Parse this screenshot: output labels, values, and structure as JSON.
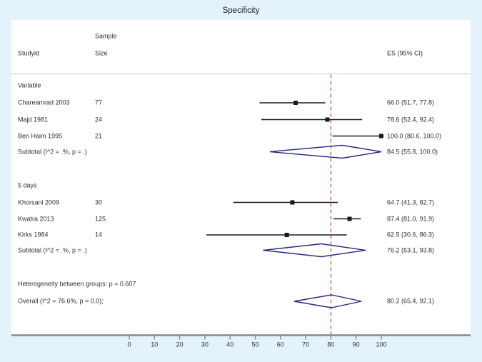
{
  "title": "Specificity",
  "header": {
    "studyid": "Studyid",
    "sample_line1": "Sample",
    "sample_line2": "Size",
    "es": "ES (95% CI)"
  },
  "colors": {
    "background": "#e4f2fb",
    "plot_background": "#ffffff",
    "reference_line": "#c96f6a",
    "diamond_outline": "#262c7e",
    "ci_line": "#1a1a1a",
    "axis_line": "#85898f",
    "header_divider": "#c9c9c9",
    "text": "#303030"
  },
  "chart_data": {
    "type": "forest",
    "title": "Specificity",
    "xlim": [
      0,
      100
    ],
    "x_ticks": [
      0,
      10,
      20,
      30,
      40,
      50,
      60,
      70,
      80,
      90,
      100
    ],
    "reference_line_x": 80,
    "groups": [
      {
        "label": "Variable",
        "studies": [
          {
            "study": "Chareamrad 2003",
            "sample_size": "77",
            "es": 66.0,
            "ci_low": 51.7,
            "ci_high": 77.8,
            "es_label": "66.0 (51.7, 77.8)"
          },
          {
            "study": "Majd 1981",
            "sample_size": "24",
            "es": 78.6,
            "ci_low": 52.4,
            "ci_high": 92.4,
            "es_label": "78.6 (52.4, 92.4)"
          },
          {
            "study": "Ben Haim 1995",
            "sample_size": "21",
            "es": 100.0,
            "ci_low": 80.6,
            "ci_high": 100.0,
            "es_label": "100.0 (80.6, 100.0)"
          }
        ],
        "subtotal": {
          "label": "Subtotal  (I^2 = .%, p = .)",
          "es": 84.5,
          "ci_low": 55.8,
          "ci_high": 100.0,
          "es_label": "84.5 (55.8, 100.0)"
        }
      },
      {
        "label": "5 days",
        "studies": [
          {
            "study": "Khorsani 2009",
            "sample_size": "30",
            "es": 64.7,
            "ci_low": 41.3,
            "ci_high": 82.7,
            "es_label": "64.7 (41.3, 82.7)"
          },
          {
            "study": "Kwatra 2013",
            "sample_size": "125",
            "es": 87.4,
            "ci_low": 81.0,
            "ci_high": 91.9,
            "es_label": "87.4 (81.0, 91.9)"
          },
          {
            "study": "Kirks 1984",
            "sample_size": "14",
            "es": 62.5,
            "ci_low": 30.6,
            "ci_high": 86.3,
            "es_label": "62.5 (30.6, 86.3)"
          }
        ],
        "subtotal": {
          "label": "Subtotal  (I^2 = .%, p = .)",
          "es": 76.2,
          "ci_low": 53.1,
          "ci_high": 93.8,
          "es_label": "76.2 (53.1, 93.8)"
        }
      }
    ],
    "heterogeneity_note": "Heterogeneity between groups: p = 0.607",
    "overall": {
      "label": "Overall  (I^2 = 76.6%, p = 0.0);",
      "es": 80.2,
      "ci_low": 65.4,
      "ci_high": 92.1,
      "es_label": "80.2 (65.4, 92.1)"
    }
  }
}
